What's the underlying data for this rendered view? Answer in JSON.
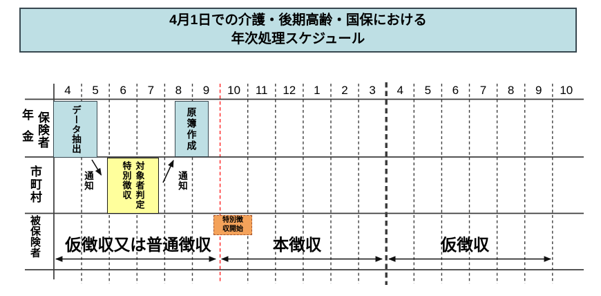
{
  "title": {
    "line1": "4月1日での介護・後期高齢・国保における",
    "line2": "年次処理スケジュール"
  },
  "timeline": {
    "months": [
      "4",
      "5",
      "6",
      "7",
      "8",
      "9",
      "10",
      "11",
      "12",
      "1",
      "2",
      "3",
      "4",
      "5",
      "6",
      "7",
      "8",
      "9",
      "10"
    ],
    "red_divider_between_months": [
      "9",
      "10"
    ],
    "year_divider_between_months": [
      "3",
      "4"
    ]
  },
  "rows": {
    "insurer": {
      "label": "年金保険者",
      "part1": "年金",
      "part2": "保険者"
    },
    "municipality": {
      "label": "市町村"
    },
    "insured": {
      "label": "被保険者"
    }
  },
  "tasks": {
    "data_extract": {
      "label": "データ抽出",
      "row": "年金保険者",
      "months": "4〜5"
    },
    "special_judge": {
      "label": "特別徴収\n対象者判定",
      "row": "市町村",
      "months": "6〜7"
    },
    "ledger_create": {
      "label": "原簿作成",
      "row": "年金保険者",
      "months": "8〜9"
    },
    "special_start": {
      "label": "特別徴\n収開始",
      "row": "被保険者",
      "months": "10"
    }
  },
  "notices": {
    "notice1": "通知",
    "notice2": "通知"
  },
  "periods": {
    "provisional_or_ordinary": {
      "label": "仮徴収又は普通徴収",
      "months": "4〜9"
    },
    "main": {
      "label": "本徴収",
      "months": "10〜3"
    },
    "provisional": {
      "label": "仮徴収",
      "months": "4〜9"
    }
  },
  "colors": {
    "box_blue": "#bedfe4",
    "box_yellow": "#ffff9c",
    "box_orange": "#f4a25a",
    "red_line": "#ff2222",
    "grid_line": "#3d3d3d"
  }
}
